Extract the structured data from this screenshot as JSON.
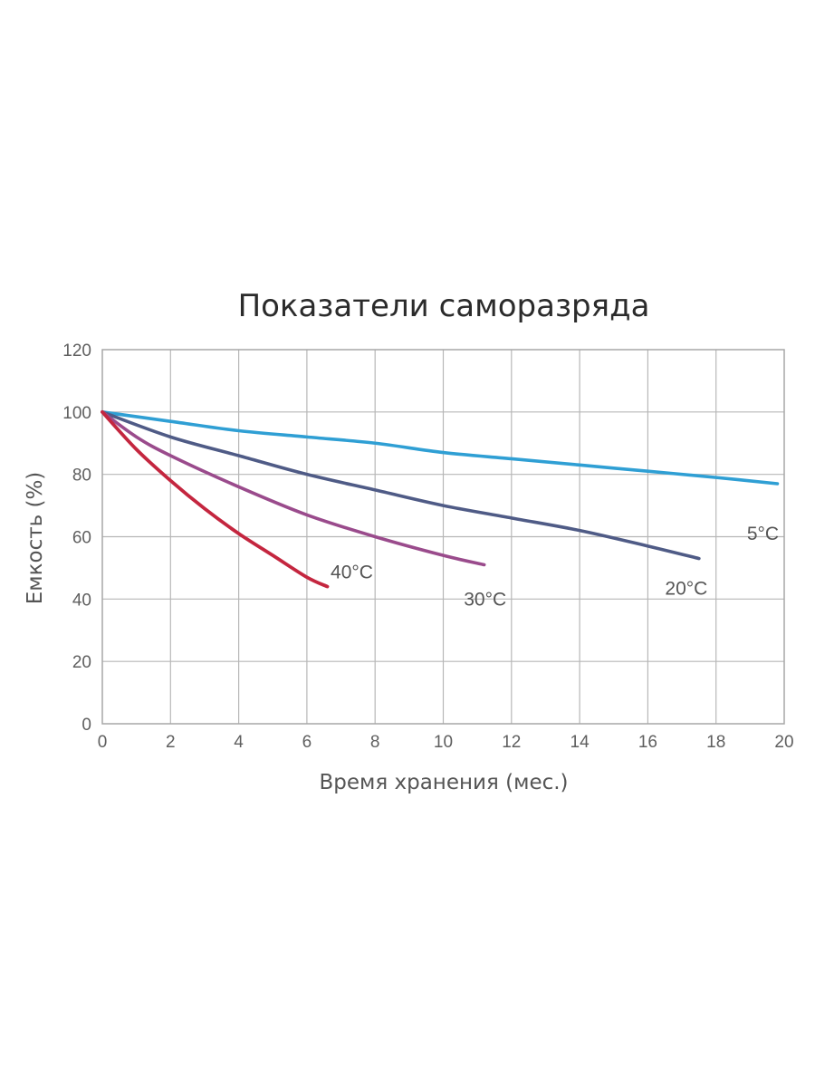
{
  "chart_data": {
    "type": "line",
    "title": "Показатели саморазряда",
    "xlabel": "Время хранения (мес.)",
    "ylabel": "Емкость (%)",
    "xlim": [
      0,
      20
    ],
    "ylim": [
      0,
      120
    ],
    "xticks": [
      "0",
      "2",
      "4",
      "6",
      "8",
      "10",
      "12",
      "14",
      "16",
      "18",
      "20"
    ],
    "yticks": [
      "0",
      "20",
      "40",
      "60",
      "80",
      "100",
      "120"
    ],
    "grid": true,
    "series": [
      {
        "name": "5°C",
        "color": "#2f9fd4",
        "points": [
          [
            0,
            100
          ],
          [
            2,
            97
          ],
          [
            4,
            94
          ],
          [
            6,
            92
          ],
          [
            8,
            90
          ],
          [
            10,
            87
          ],
          [
            12,
            85
          ],
          [
            14,
            83
          ],
          [
            16,
            81
          ],
          [
            18,
            79
          ],
          [
            19.8,
            77
          ]
        ]
      },
      {
        "name": "20°C",
        "color": "#4f5b86",
        "points": [
          [
            0,
            100
          ],
          [
            2,
            92
          ],
          [
            4,
            86
          ],
          [
            6,
            80
          ],
          [
            8,
            75
          ],
          [
            10,
            70
          ],
          [
            12,
            66
          ],
          [
            14,
            62
          ],
          [
            16,
            57
          ],
          [
            17.5,
            53
          ]
        ]
      },
      {
        "name": "30°C",
        "color": "#9a4b8c",
        "points": [
          [
            0,
            100
          ],
          [
            1,
            92
          ],
          [
            2,
            86
          ],
          [
            4,
            76
          ],
          [
            6,
            67
          ],
          [
            8,
            60
          ],
          [
            10,
            54
          ],
          [
            11.2,
            51
          ]
        ]
      },
      {
        "name": "40°C",
        "color": "#c4263f",
        "points": [
          [
            0,
            100
          ],
          [
            1,
            88
          ],
          [
            2,
            78
          ],
          [
            3,
            69
          ],
          [
            4,
            61
          ],
          [
            5,
            54
          ],
          [
            6,
            47
          ],
          [
            6.6,
            44
          ]
        ]
      }
    ]
  }
}
